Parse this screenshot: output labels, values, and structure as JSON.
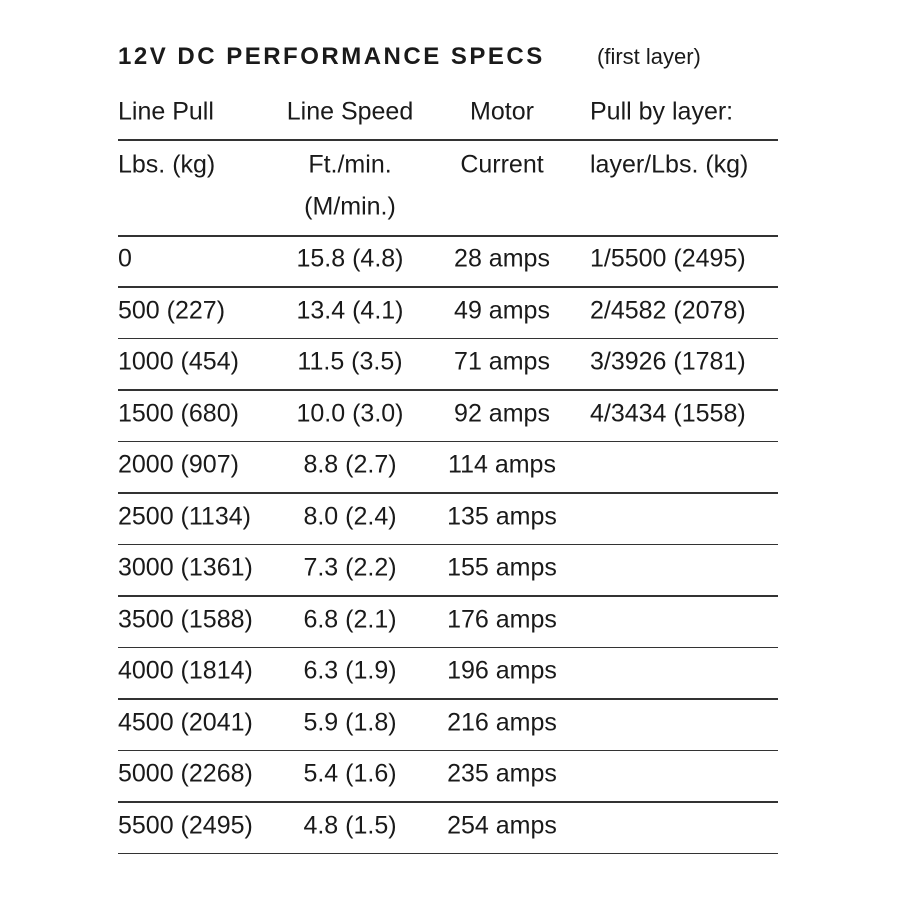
{
  "header": {
    "title": "12V DC PERFORMANCE SPECS",
    "subtitle": "(first layer)"
  },
  "table": {
    "header_rows": [
      [
        "Line Pull",
        "Line Speed",
        "Motor",
        "Pull by layer:"
      ],
      [
        "Lbs. (kg)",
        [
          "Ft./min.",
          "(M/min.)"
        ],
        "Current",
        "layer/Lbs. (kg)"
      ]
    ],
    "rows": [
      [
        "0",
        "15.8 (4.8)",
        "28 amps",
        "1/5500 (2495)"
      ],
      [
        "500 (227)",
        "13.4 (4.1)",
        "49 amps",
        "2/4582 (2078)"
      ],
      [
        "1000 (454)",
        "11.5 (3.5)",
        "71 amps",
        "3/3926 (1781)"
      ],
      [
        "1500 (680)",
        "10.0 (3.0)",
        "92 amps",
        "4/3434 (1558)"
      ],
      [
        "2000 (907)",
        "8.8 (2.7)",
        "114 amps"
      ],
      [
        "2500 (1134)",
        "8.0 (2.4)",
        "135 amps"
      ],
      [
        "3000 (1361)",
        "7.3 (2.2)",
        "155 amps"
      ],
      [
        "3500 (1588)",
        "6.8 (2.1)",
        "176 amps"
      ],
      [
        "4000 (1814)",
        "6.3 (1.9)",
        "196 amps"
      ],
      [
        "4500 (2041)",
        "5.9 (1.8)",
        "216 amps"
      ],
      [
        "5000 (2268)",
        "5.4 (1.6)",
        "235 amps"
      ],
      [
        "5500 (2495)",
        "4.8 (1.5)",
        "254 amps"
      ]
    ]
  }
}
